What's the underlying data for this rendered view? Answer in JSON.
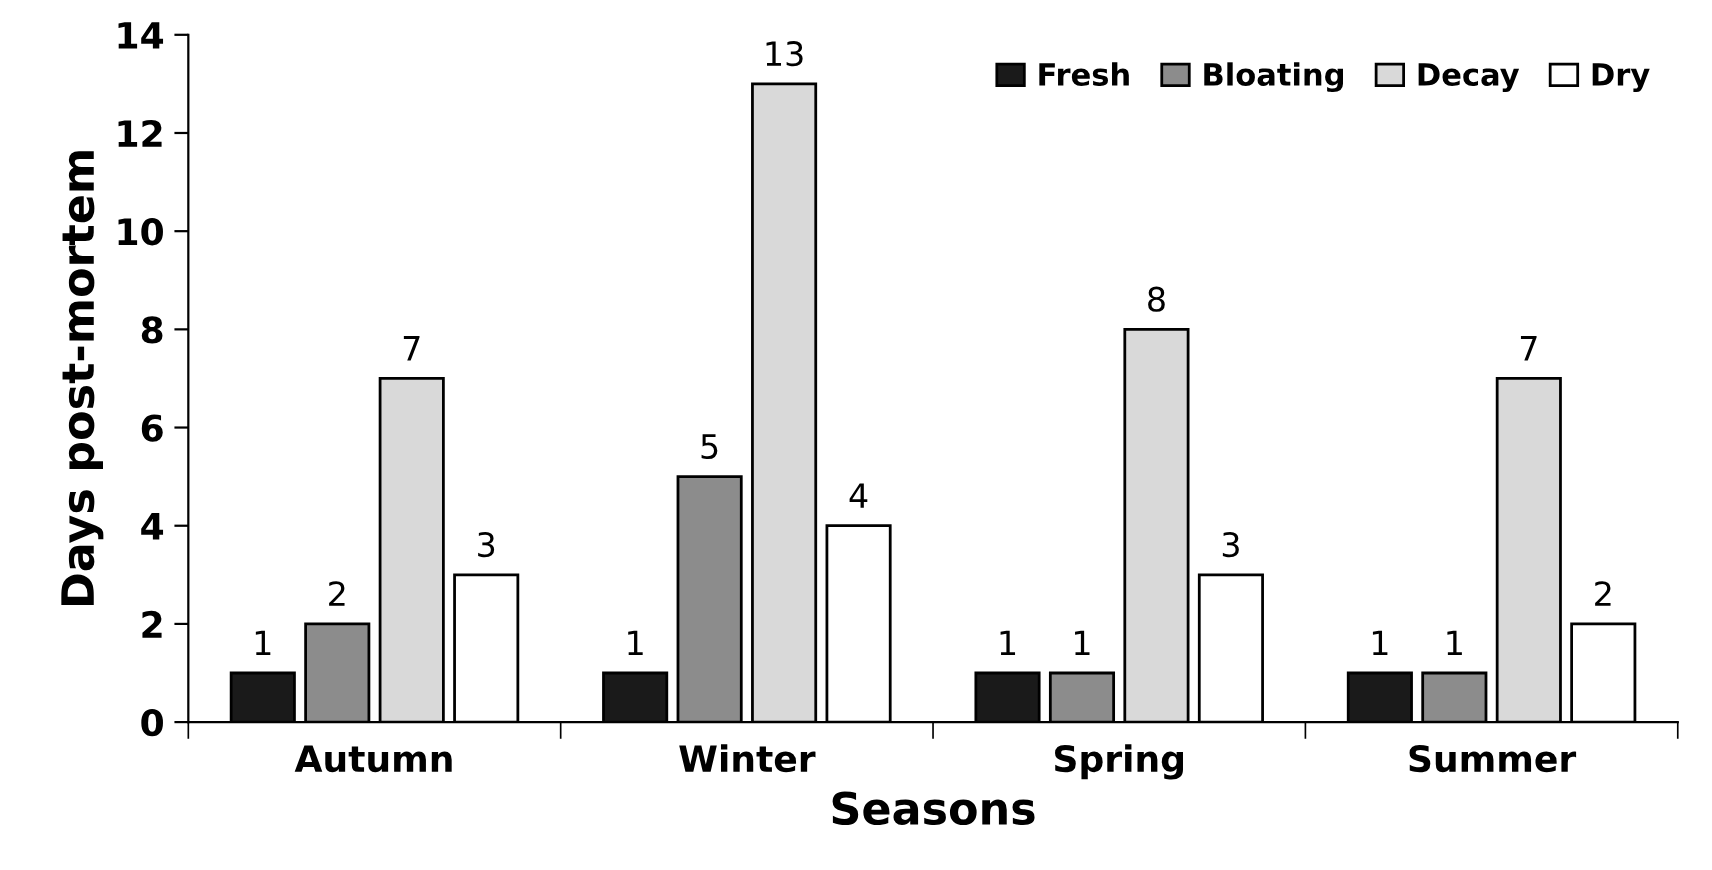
{
  "chart_data": {
    "type": "bar",
    "xlabel": "Seasons",
    "ylabel": "Days post-mortem",
    "categories": [
      "Autumn",
      "Winter",
      "Spring",
      "Summer"
    ],
    "series": [
      {
        "name": "Fresh",
        "color": "#1a1a1a",
        "values": [
          1,
          1,
          1,
          1
        ]
      },
      {
        "name": "Bloating",
        "color": "#8c8c8c",
        "values": [
          2,
          5,
          1,
          1
        ]
      },
      {
        "name": "Decay",
        "color": "#d9d9d9",
        "values": [
          7,
          13,
          8,
          7
        ]
      },
      {
        "name": "Dry",
        "color": "#ffffff",
        "values": [
          3,
          4,
          3,
          2
        ]
      }
    ],
    "ylim": [
      0,
      14
    ],
    "yticks": [
      0,
      2,
      4,
      6,
      8,
      10,
      12,
      14
    ],
    "data_labels": true,
    "legend": "top right",
    "grid": false
  }
}
